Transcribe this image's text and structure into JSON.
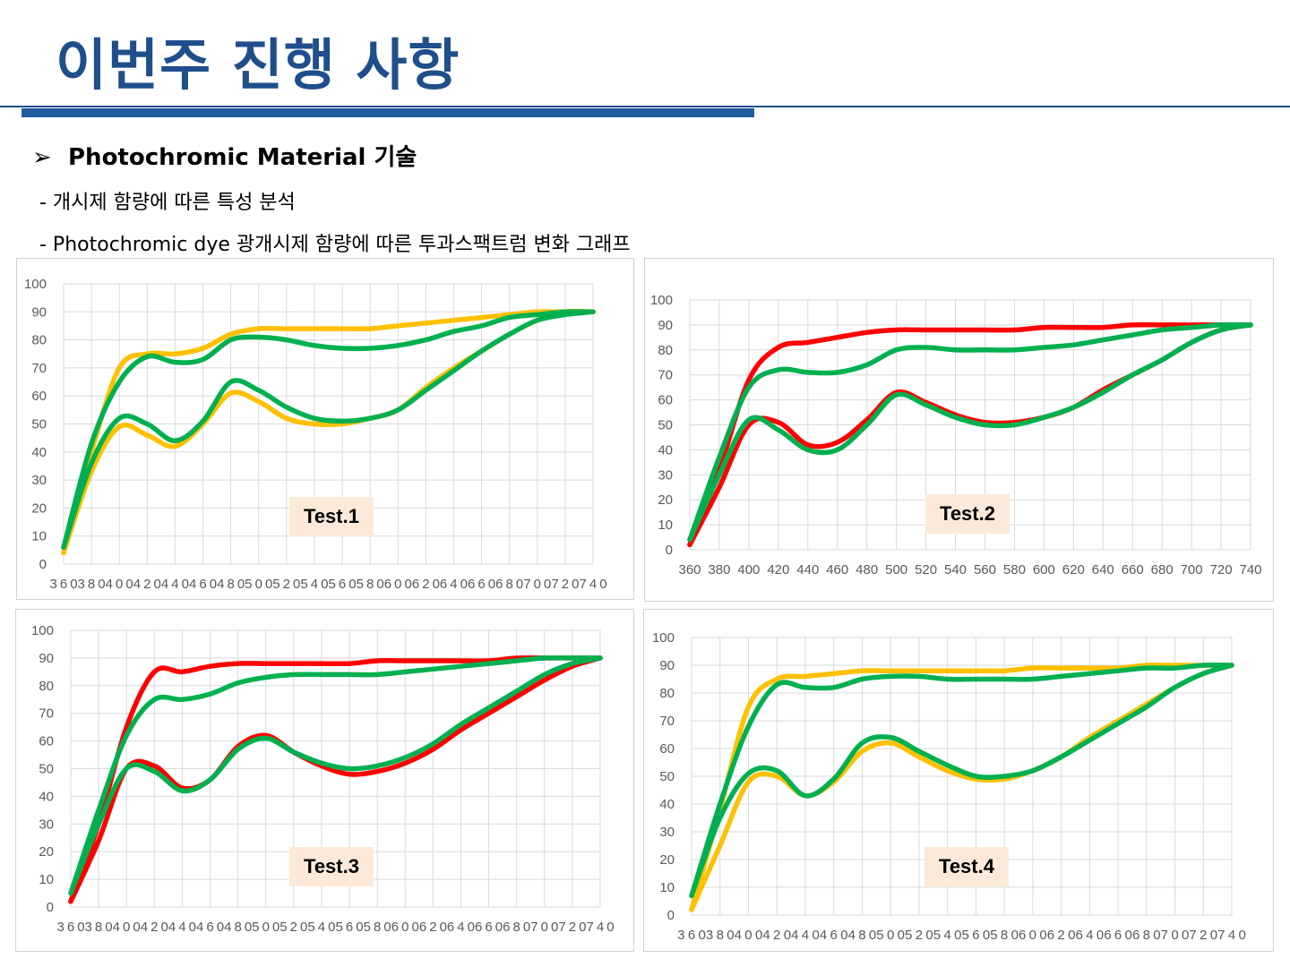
{
  "slide": {
    "title": "이번주 진행 사항",
    "bullet_arrow": "➢",
    "bullet": "Photochromic Material 기술",
    "sub1": "- 개시제 함량에 따른 특성 분석",
    "sub2": "- Photochromic  dye 광개시제 함량에 따른 투과스팩트럼 변화 그래프"
  },
  "colors": {
    "title": "#1f4e8c",
    "red": "#ff0000",
    "yellow": "#ffc000",
    "green": "#00b050",
    "label_bg": "#fce9d9"
  },
  "chart_data": [
    {
      "type": "line",
      "title": "",
      "annotation": "Test.1",
      "x": [
        360,
        380,
        400,
        420,
        440,
        460,
        480,
        500,
        520,
        540,
        560,
        580,
        600,
        620,
        640,
        660,
        680,
        700,
        720,
        740
      ],
      "x_tick_labels": [
        "360",
        "380",
        "400",
        "420",
        "440",
        "460",
        "480",
        "500",
        "520",
        "540",
        "560",
        "580",
        "600",
        "620",
        "640",
        "660",
        "680",
        "700",
        "720",
        "740"
      ],
      "ylim": [
        0,
        100
      ],
      "y_ticks": [
        0,
        10,
        20,
        30,
        40,
        50,
        60,
        70,
        80,
        90,
        100
      ],
      "grid": true,
      "legend": "none",
      "series": [
        {
          "color": "#ffc000",
          "values": [
            4,
            40,
            70,
            75,
            75,
            77,
            82,
            84,
            84,
            84,
            84,
            84,
            85,
            86,
            87,
            88,
            89,
            90,
            90,
            90
          ]
        },
        {
          "color": "#ffc000",
          "values": [
            4,
            33,
            49,
            46,
            42,
            50,
            61,
            58,
            52,
            50,
            50,
            52,
            55,
            63,
            70,
            76,
            82,
            87,
            90,
            90
          ]
        },
        {
          "color": "#00b050",
          "values": [
            6,
            43,
            65,
            74,
            72,
            73,
            80,
            81,
            80,
            78,
            77,
            77,
            78,
            80,
            83,
            85,
            88,
            89,
            90,
            90
          ]
        },
        {
          "color": "#00b050",
          "values": [
            6,
            36,
            52,
            50,
            44,
            51,
            65,
            62,
            56,
            52,
            51,
            52,
            55,
            62,
            69,
            76,
            82,
            87,
            89,
            90
          ]
        }
      ]
    },
    {
      "type": "line",
      "title": "",
      "annotation": "Test.2",
      "x": [
        360,
        380,
        400,
        420,
        440,
        460,
        480,
        500,
        520,
        540,
        560,
        580,
        600,
        620,
        640,
        660,
        680,
        700,
        720,
        740
      ],
      "x_tick_labels": [
        "360",
        "380",
        "400",
        "420",
        "440",
        "460",
        "480",
        "500",
        "520",
        "540",
        "560",
        "580",
        "600",
        "620",
        "640",
        "660",
        "680",
        "700",
        "720",
        "740"
      ],
      "ylim": [
        0,
        100
      ],
      "y_ticks": [
        0,
        10,
        20,
        30,
        40,
        50,
        60,
        70,
        80,
        90,
        100
      ],
      "grid": true,
      "legend": "none",
      "series": [
        {
          "color": "#ff0000",
          "values": [
            2,
            32,
            68,
            81,
            83,
            85,
            87,
            88,
            88,
            88,
            88,
            88,
            89,
            89,
            89,
            90,
            90,
            90,
            90,
            90
          ]
        },
        {
          "color": "#ff0000",
          "values": [
            2,
            25,
            50,
            51,
            42,
            43,
            52,
            63,
            59,
            54,
            51,
            51,
            53,
            57,
            64,
            70,
            76,
            83,
            88,
            90
          ]
        },
        {
          "color": "#00b050",
          "values": [
            4,
            37,
            65,
            72,
            71,
            71,
            74,
            80,
            81,
            80,
            80,
            80,
            81,
            82,
            84,
            86,
            88,
            89,
            90,
            90
          ]
        },
        {
          "color": "#00b050",
          "values": [
            4,
            30,
            52,
            48,
            40,
            40,
            50,
            62,
            58,
            53,
            50,
            50,
            53,
            57,
            63,
            70,
            76,
            83,
            88,
            90
          ]
        }
      ]
    },
    {
      "type": "line",
      "title": "",
      "annotation": "Test.3",
      "x": [
        360,
        380,
        400,
        420,
        440,
        460,
        480,
        500,
        520,
        540,
        560,
        580,
        600,
        620,
        640,
        660,
        680,
        700,
        720,
        740
      ],
      "x_tick_labels": [
        "360",
        "380",
        "400",
        "420",
        "440",
        "460",
        "480",
        "500",
        "520",
        "540",
        "560",
        "580",
        "600",
        "620",
        "640",
        "660",
        "680",
        "700",
        "720",
        "740"
      ],
      "ylim": [
        0,
        100
      ],
      "y_ticks": [
        0,
        10,
        20,
        30,
        40,
        50,
        60,
        70,
        80,
        90,
        100
      ],
      "grid": true,
      "legend": "none",
      "series": [
        {
          "color": "#ff0000",
          "values": [
            2,
            30,
            65,
            85,
            85,
            87,
            88,
            88,
            88,
            88,
            88,
            89,
            89,
            89,
            89,
            89,
            90,
            90,
            90,
            90
          ]
        },
        {
          "color": "#ff0000",
          "values": [
            2,
            24,
            50,
            51,
            43,
            46,
            58,
            62,
            56,
            51,
            48,
            49,
            52,
            57,
            64,
            70,
            76,
            82,
            87,
            90
          ]
        },
        {
          "color": "#00b050",
          "values": [
            5,
            35,
            62,
            75,
            75,
            77,
            81,
            83,
            84,
            84,
            84,
            84,
            85,
            86,
            87,
            88,
            89,
            90,
            90,
            90
          ]
        },
        {
          "color": "#00b050",
          "values": [
            5,
            30,
            50,
            49,
            42,
            46,
            57,
            61,
            56,
            52,
            50,
            51,
            54,
            59,
            66,
            72,
            78,
            84,
            88,
            90
          ]
        }
      ]
    },
    {
      "type": "line",
      "title": "",
      "annotation": "Test.4",
      "x": [
        360,
        380,
        400,
        420,
        440,
        460,
        480,
        500,
        520,
        540,
        560,
        580,
        600,
        620,
        640,
        660,
        680,
        700,
        720,
        740
      ],
      "x_tick_labels": [
        "360",
        "380",
        "400",
        "420",
        "440",
        "460",
        "480",
        "500",
        "520",
        "540",
        "560",
        "580",
        "600",
        "620",
        "640",
        "660",
        "680",
        "700",
        "720",
        "740"
      ],
      "ylim": [
        0,
        100
      ],
      "y_ticks": [
        0,
        10,
        20,
        30,
        40,
        50,
        60,
        70,
        80,
        90,
        100
      ],
      "grid": true,
      "legend": "none",
      "series": [
        {
          "color": "#ffc000",
          "values": [
            2,
            38,
            75,
            85,
            86,
            87,
            88,
            88,
            88,
            88,
            88,
            88,
            89,
            89,
            89,
            89,
            90,
            90,
            90,
            90
          ]
        },
        {
          "color": "#ffc000",
          "values": [
            2,
            25,
            48,
            50,
            43,
            48,
            59,
            62,
            57,
            52,
            49,
            49,
            52,
            57,
            64,
            70,
            76,
            82,
            87,
            90
          ]
        },
        {
          "color": "#00b050",
          "values": [
            7,
            40,
            68,
            83,
            82,
            82,
            85,
            86,
            86,
            85,
            85,
            85,
            85,
            86,
            87,
            88,
            89,
            89,
            90,
            90
          ]
        },
        {
          "color": "#00b050",
          "values": [
            7,
            35,
            51,
            52,
            43,
            49,
            62,
            64,
            59,
            54,
            50,
            50,
            52,
            57,
            63,
            69,
            75,
            82,
            87,
            90
          ]
        }
      ]
    }
  ]
}
